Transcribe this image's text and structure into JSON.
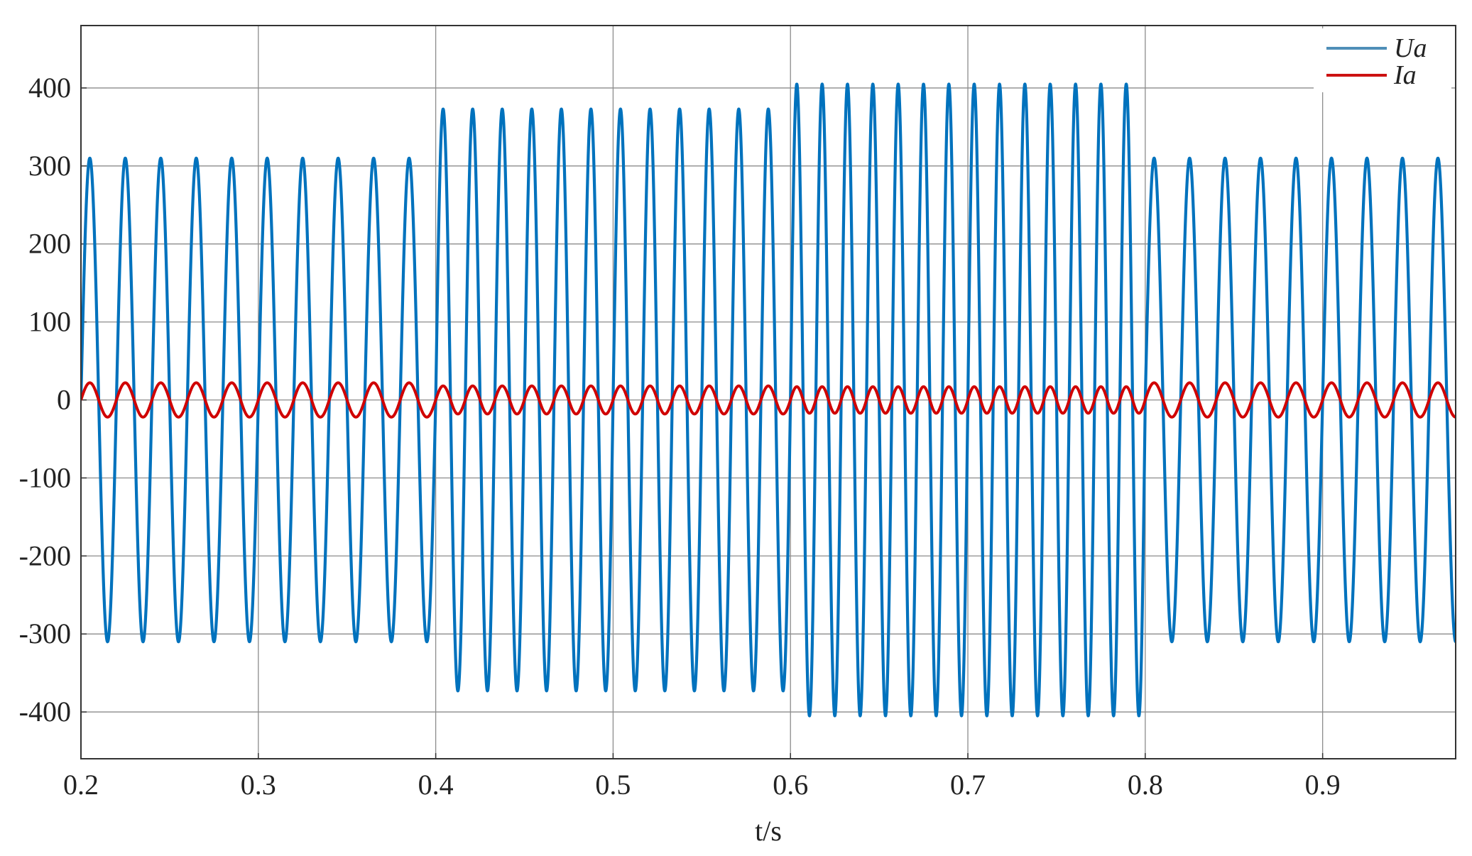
{
  "chart_data": {
    "type": "line",
    "title": "",
    "xlabel": "t/s",
    "ylabel": "",
    "xlim": [
      0.2,
      0.975
    ],
    "ylim": [
      -460,
      480
    ],
    "grid": true,
    "legend_position": "top-right",
    "xticks": [
      0.2,
      0.3,
      0.4,
      0.5,
      0.6,
      0.7,
      0.8,
      0.9
    ],
    "xtick_labels": [
      "0.2",
      "0.3",
      "0.4",
      "0.5",
      "0.6",
      "0.7",
      "0.8",
      "0.9"
    ],
    "yticks": [
      400,
      300,
      200,
      100,
      0,
      -100,
      -200,
      -300,
      -400
    ],
    "ytick_labels": [
      "400",
      "300",
      "200",
      "100",
      "0",
      "-100",
      "-200",
      "-300",
      "-400"
    ],
    "series": [
      {
        "name": "Ua",
        "legend_label": "Ua",
        "color": "#0072BD",
        "legend_color": "#4f8fb8",
        "waveform": "sine",
        "segments": [
          {
            "t_start": 0.2,
            "t_end": 0.4,
            "frequency_hz": 50,
            "amplitude": 310
          },
          {
            "t_start": 0.4,
            "t_end": 0.6,
            "frequency_hz": 60,
            "amplitude": 373
          },
          {
            "t_start": 0.6,
            "t_end": 0.8,
            "frequency_hz": 70,
            "amplitude": 405
          },
          {
            "t_start": 0.8,
            "t_end": 0.975,
            "frequency_hz": 50,
            "amplitude": 310
          }
        ]
      },
      {
        "name": "Ia",
        "legend_label": "Ia",
        "color": "#D00000",
        "legend_color": "#cc1111",
        "waveform": "sine",
        "segments": [
          {
            "t_start": 0.2,
            "t_end": 0.4,
            "frequency_hz": 50,
            "amplitude": 22
          },
          {
            "t_start": 0.4,
            "t_end": 0.6,
            "frequency_hz": 60,
            "amplitude": 18
          },
          {
            "t_start": 0.6,
            "t_end": 0.8,
            "frequency_hz": 70,
            "amplitude": 17
          },
          {
            "t_start": 0.8,
            "t_end": 0.975,
            "frequency_hz": 50,
            "amplitude": 22
          }
        ]
      }
    ]
  }
}
